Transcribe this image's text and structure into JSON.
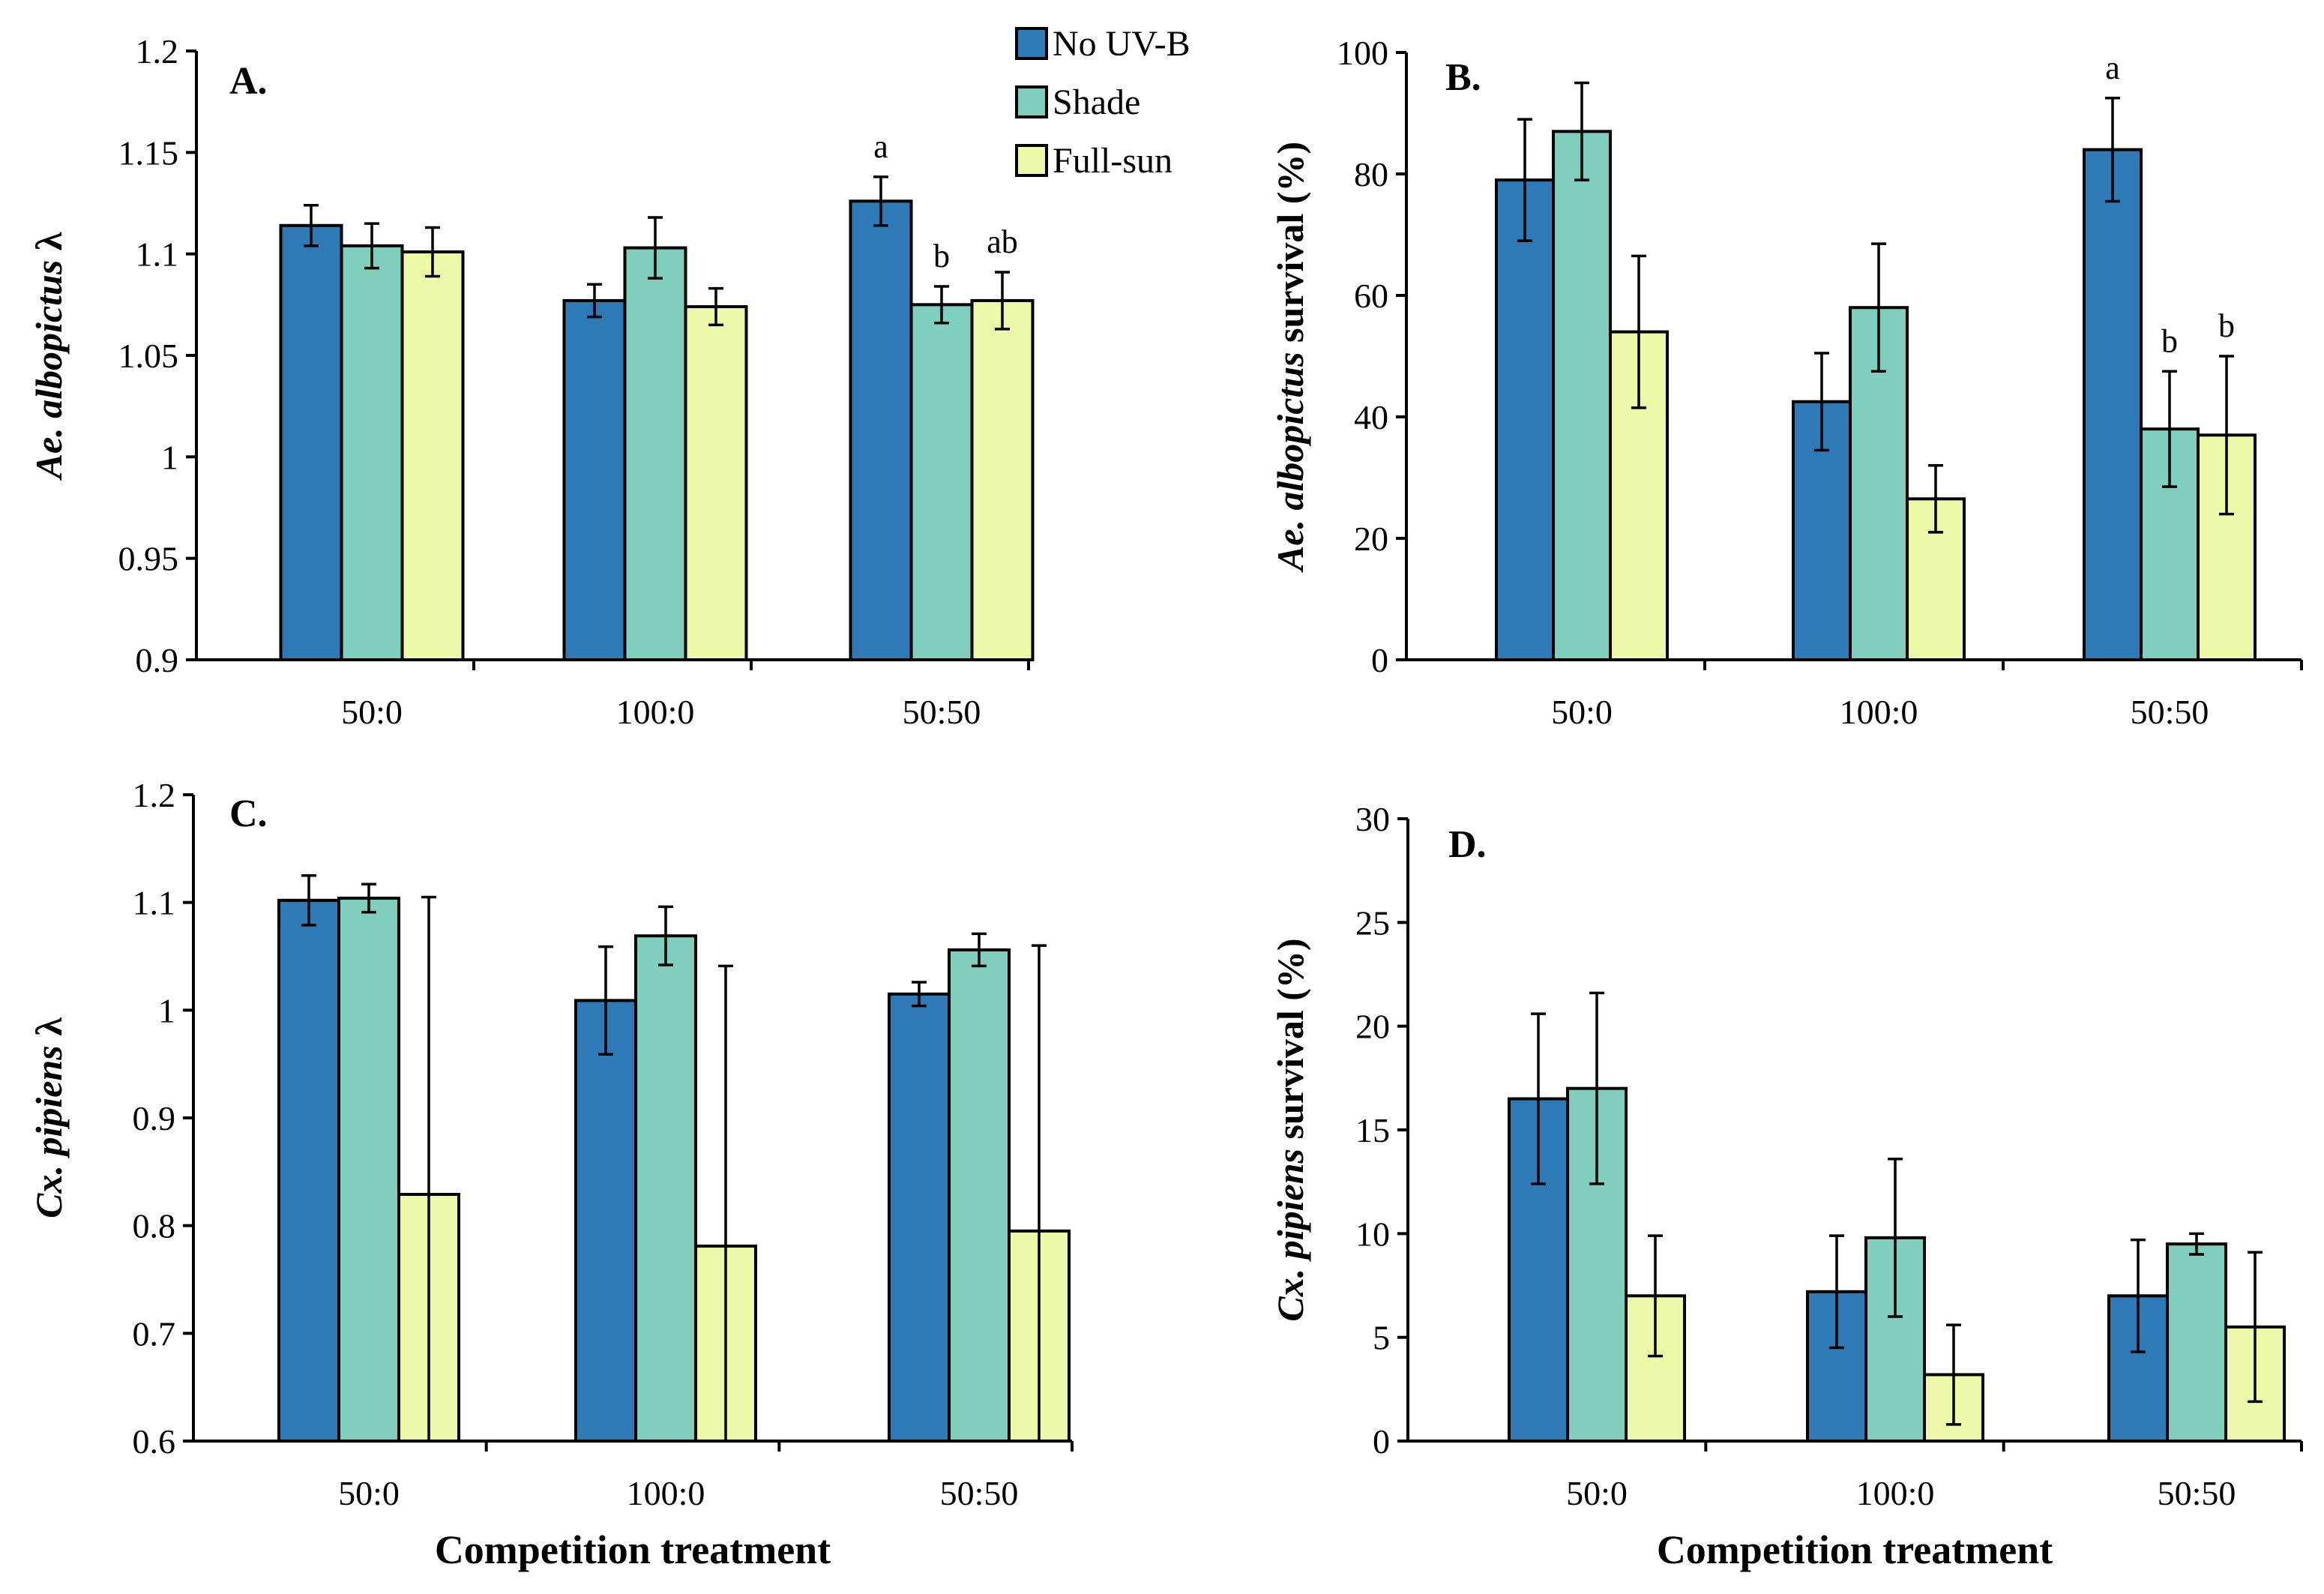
{
  "colors": {
    "no_uvb": "#2e7ab6",
    "shade": "#80cfbd",
    "full_sun": "#eef8a9"
  },
  "legend": [
    {
      "label": "No UV-B",
      "color": "#2e7ab6"
    },
    {
      "label": "Shade",
      "color": "#80cfbd"
    },
    {
      "label": "Full-sun",
      "color": "#eef8a9"
    }
  ],
  "chart_data": [
    {
      "type": "bar",
      "panel": "A.",
      "ylabel_italic": "Ae. albopictus",
      "ylabel_rest": "λ",
      "xlabel": "",
      "categories": [
        "50:0",
        "100:0",
        "50:50"
      ],
      "ylim": [
        0.9,
        1.2
      ],
      "yticks": [
        0.9,
        0.95,
        1,
        1.05,
        1.1,
        1.15,
        1.2
      ],
      "ytick_labels": [
        "0.9",
        "0.95",
        "1",
        "1.05",
        "1.1",
        "1.15",
        "1.2"
      ],
      "series": [
        {
          "name": "No UV-B",
          "values": [
            1.114,
            1.077,
            1.126
          ],
          "errors": [
            0.01,
            0.008,
            0.012
          ],
          "sig": [
            "",
            "",
            "a"
          ]
        },
        {
          "name": "Shade",
          "values": [
            1.104,
            1.103,
            1.075
          ],
          "errors": [
            0.011,
            0.015,
            0.009
          ],
          "sig": [
            "",
            "",
            "b"
          ]
        },
        {
          "name": "Full-sun",
          "values": [
            1.101,
            1.074,
            1.077
          ],
          "errors": [
            0.012,
            0.009,
            0.014
          ],
          "sig": [
            "",
            "",
            "ab"
          ]
        }
      ]
    },
    {
      "type": "bar",
      "panel": "B.",
      "ylabel_italic": "Ae. albopictus",
      "ylabel_rest": "survival  (%)",
      "xlabel": "",
      "categories": [
        "50:0",
        "100:0",
        "50:50"
      ],
      "ylim": [
        0,
        100
      ],
      "yticks": [
        0,
        20,
        40,
        60,
        80,
        100
      ],
      "ytick_labels": [
        "0",
        "20",
        "40",
        "60",
        "80",
        "100"
      ],
      "series": [
        {
          "name": "No UV-B",
          "values": [
            79,
            42.5,
            84
          ],
          "errors": [
            10,
            8,
            8.5
          ],
          "sig": [
            "",
            "",
            "a"
          ]
        },
        {
          "name": "Shade",
          "values": [
            87,
            58,
            38
          ],
          "errors": [
            8,
            10.5,
            9.5
          ],
          "sig": [
            "",
            "",
            "b"
          ]
        },
        {
          "name": "Full-sun",
          "values": [
            54,
            26.5,
            37
          ],
          "errors": [
            12.5,
            5.5,
            13
          ],
          "sig": [
            "",
            "",
            "b"
          ]
        }
      ]
    },
    {
      "type": "bar",
      "panel": "C.",
      "ylabel_italic": "Cx. pipiens",
      "ylabel_rest": "λ",
      "xlabel": "Competition  treatment",
      "categories": [
        "50:0",
        "100:0",
        "50:50"
      ],
      "ylim": [
        0.6,
        1.2
      ],
      "yticks": [
        0.6,
        0.7,
        0.8,
        0.9,
        1,
        1.1,
        1.2
      ],
      "ytick_labels": [
        "0.6",
        "0.7",
        "0.8",
        "0.9",
        "1",
        "1.1",
        "1.2"
      ],
      "series": [
        {
          "name": "No UV-B",
          "values": [
            1.102,
            1.009,
            1.015
          ],
          "errors": [
            0.023,
            0.05,
            0.011
          ],
          "sig": [
            "",
            "",
            ""
          ]
        },
        {
          "name": "Shade",
          "values": [
            1.104,
            1.069,
            1.056
          ],
          "errors": [
            0.013,
            0.027,
            0.015
          ],
          "sig": [
            "",
            "",
            ""
          ]
        },
        {
          "name": "Full-sun",
          "values": [
            0.829,
            0.781,
            0.795
          ],
          "errors": [
            0.276,
            0.26,
            0.265
          ],
          "sig": [
            "",
            "",
            ""
          ]
        }
      ]
    },
    {
      "type": "bar",
      "panel": "D.",
      "ylabel_italic": "Cx. pipiens",
      "ylabel_rest": "survival  (%)",
      "xlabel": "Competition  treatment",
      "categories": [
        "50:0",
        "100:0",
        "50:50"
      ],
      "ylim": [
        0,
        30
      ],
      "yticks": [
        0,
        5,
        10,
        15,
        20,
        25,
        30
      ],
      "ytick_labels": [
        "0",
        "5",
        "10",
        "15",
        "20",
        "25",
        "30"
      ],
      "series": [
        {
          "name": "No UV-B",
          "values": [
            16.5,
            7.2,
            7
          ],
          "errors": [
            4.1,
            2.7,
            2.7
          ],
          "sig": [
            "",
            "",
            ""
          ]
        },
        {
          "name": "Shade",
          "values": [
            17,
            9.8,
            9.5
          ],
          "errors": [
            4.6,
            3.8,
            0.5
          ],
          "sig": [
            "",
            "",
            ""
          ]
        },
        {
          "name": "Full-sun",
          "values": [
            7,
            3.2,
            5.5
          ],
          "errors": [
            2.9,
            2.4,
            3.6
          ],
          "sig": [
            "",
            "",
            ""
          ]
        }
      ]
    }
  ]
}
